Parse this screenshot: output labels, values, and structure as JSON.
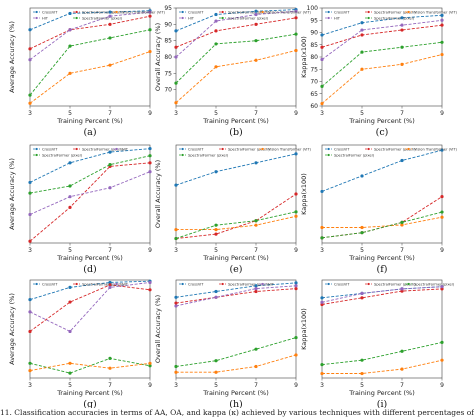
{
  "caption": "11. Classification accuracies in terms of AA, OA, and kappa (κ) achieved by various techniques with different percentages of training samples per",
  "colors": {
    "CrossViT": "#1f77b4",
    "SpectralFormer (patch)": "#d62728",
    "Vision Transformer (ViT)": "#ff7f0e",
    "HiT": "#9467bd",
    "SpectralFormer (pixel)": "#2ca02c"
  },
  "chart_data": [
    {
      "id": "a",
      "panel_label": "(a)",
      "type": "line",
      "xlabel": "Training Percent (%)",
      "ylabel": "Average Accuracy (%)",
      "x": [
        3,
        5,
        7,
        9
      ],
      "xlim": [
        3,
        9
      ],
      "ylim": [
        57,
        93
      ],
      "yticks": [],
      "legend": {
        "position": "top",
        "entries": [
          "CrossViT",
          "SpectralFormer (patch)",
          "Vision Transformer (ViT)",
          "HiT",
          "SpectralFormer (pixel)"
        ]
      },
      "series": [
        {
          "name": "CrossViT",
          "values": [
            85,
            91,
            91.5,
            92
          ]
        },
        {
          "name": "SpectralFormer (patch)",
          "values": [
            78,
            85,
            87,
            90
          ]
        },
        {
          "name": "Vision Transformer (ViT)",
          "values": [
            58,
            69,
            72,
            77
          ]
        },
        {
          "name": "HiT",
          "values": [
            74,
            85,
            90,
            91.5
          ]
        },
        {
          "name": "SpectralFormer (pixel)",
          "values": [
            61,
            79,
            82,
            85
          ]
        }
      ]
    },
    {
      "id": "d",
      "panel_label": "(d)",
      "type": "line",
      "xlabel": "Training Percent (%)",
      "ylabel": "Average Accuracy (%)",
      "x": [
        3,
        5,
        7,
        9
      ],
      "xlim": [
        3,
        9
      ],
      "ylim": [
        42,
        97
      ],
      "yticks": [],
      "legend": {
        "position": "top",
        "entries": [
          "CrossViT",
          "SpectralFormer (patch)",
          "HiT",
          "SpectralFormer (pixel)"
        ]
      },
      "series": [
        {
          "name": "CrossViT",
          "values": [
            76,
            87,
            93,
            95
          ]
        },
        {
          "name": "SpectralFormer (patch)",
          "values": [
            43,
            62,
            85,
            87
          ]
        },
        {
          "name": "HiT",
          "values": [
            58,
            68,
            73,
            82
          ]
        },
        {
          "name": "SpectralFormer (pixel)",
          "values": [
            70,
            74,
            86,
            91
          ]
        }
      ]
    },
    {
      "id": "g",
      "panel_label": "(g)",
      "type": "line",
      "xlabel": "Training Percent (%)",
      "ylabel": "Average Accuracy (%)",
      "x": [
        3,
        5,
        7,
        9
      ],
      "xlim": [
        3,
        9
      ],
      "ylim": [
        55,
        95
      ],
      "yticks": [],
      "legend": {
        "position": "top",
        "entries": [
          "CrossViT",
          "SpectralFormer (patch)",
          "HiT"
        ]
      },
      "series": [
        {
          "name": "CrossViT",
          "values": [
            87,
            92,
            94,
            94.5
          ]
        },
        {
          "name": "SpectralFormer (patch)",
          "values": [
            74,
            86,
            93,
            91
          ]
        },
        {
          "name": "HiT",
          "values": [
            82,
            74,
            92,
            94
          ]
        },
        {
          "name": "SpectralFormer (pixel)",
          "values": [
            61,
            57,
            63,
            60
          ]
        },
        {
          "name": "Vision Transformer (ViT)",
          "values": [
            58,
            61,
            59,
            61
          ]
        }
      ]
    },
    {
      "id": "b",
      "panel_label": "(b)",
      "type": "line",
      "xlabel": "Training Percent (%)",
      "ylabel": "Overall Accuracy (%)",
      "x": [
        3,
        5,
        7,
        9
      ],
      "xlim": [
        3,
        9
      ],
      "ylim": [
        65,
        95
      ],
      "yticks": [
        70,
        75,
        80,
        85,
        90,
        95
      ],
      "legend": {
        "position": "top",
        "entries": [
          "CrossViT",
          "SpectralFormer (patch)",
          "Vision Transformer (ViT)",
          "HiT",
          "SpectralFormer (pixel)"
        ]
      },
      "series": [
        {
          "name": "CrossViT",
          "values": [
            88,
            93,
            94,
            94.5
          ]
        },
        {
          "name": "SpectralFormer (patch)",
          "values": [
            83,
            88,
            90,
            92
          ]
        },
        {
          "name": "Vision Transformer (ViT)",
          "values": [
            66,
            77,
            79,
            82
          ]
        },
        {
          "name": "HiT",
          "values": [
            80,
            91,
            93,
            94
          ]
        },
        {
          "name": "SpectralFormer (pixel)",
          "values": [
            72,
            84,
            85,
            87
          ]
        }
      ]
    },
    {
      "id": "e",
      "panel_label": "(e)",
      "type": "line",
      "xlabel": "Training Percent (%)",
      "ylabel": "Overall Accuracy (%)",
      "x": [
        3,
        5,
        7,
        9
      ],
      "xlim": [
        3,
        9
      ],
      "ylim": [
        77,
        99
      ],
      "yticks": [],
      "legend": {
        "position": "top",
        "entries": [
          "CrossViT",
          "SpectralFormer (patch)",
          "Vision Transformer (ViT)",
          "SpectralFormer (pixel)"
        ]
      },
      "series": [
        {
          "name": "CrossViT",
          "values": [
            90,
            93,
            95,
            97
          ]
        },
        {
          "name": "SpectralFormer (patch)",
          "values": [
            78,
            79,
            82,
            88
          ]
        },
        {
          "name": "Vision Transformer (ViT)",
          "values": [
            80,
            80,
            81,
            83
          ]
        },
        {
          "name": "SpectralFormer (pixel)",
          "values": [
            78,
            81,
            82,
            84
          ]
        }
      ]
    },
    {
      "id": "h",
      "panel_label": "(h)",
      "type": "line",
      "xlabel": "Training Percent (%)",
      "ylabel": "Overall Accuracy (%)",
      "x": [
        3,
        5,
        7,
        9
      ],
      "xlim": [
        3,
        9
      ],
      "ylim": [
        79,
        96
      ],
      "yticks": [],
      "legend": {
        "position": "top",
        "entries": [
          "CrossViT",
          "SpectralFormer (patch)",
          "HiT"
        ]
      },
      "series": [
        {
          "name": "CrossViT",
          "values": [
            93,
            94,
            95,
            95.5
          ]
        },
        {
          "name": "SpectralFormer (patch)",
          "values": [
            92,
            93,
            94,
            94.5
          ]
        },
        {
          "name": "HiT",
          "values": [
            91.5,
            93,
            94.5,
            95
          ]
        },
        {
          "name": "SpectralFormer (pixel)",
          "values": [
            81,
            82,
            84,
            86
          ]
        },
        {
          "name": "Vision Transformer (ViT)",
          "values": [
            80,
            80,
            81,
            83
          ]
        }
      ]
    },
    {
      "id": "c",
      "panel_label": "(c)",
      "type": "line",
      "xlabel": "Training Percent (%)",
      "ylabel": "Kappa(x100)",
      "x": [
        3,
        5,
        7,
        9
      ],
      "xlim": [
        3,
        9
      ],
      "ylim": [
        60,
        100
      ],
      "yticks": [
        60,
        65,
        70,
        75,
        80,
        85,
        90,
        95,
        100
      ],
      "legend": {
        "position": "top",
        "entries": [
          "CrossViT",
          "SpectralFormer (patch)",
          "Vision Transformer (ViT)",
          "HiT",
          "SpectralFormer (pixel)"
        ]
      },
      "series": [
        {
          "name": "CrossViT",
          "values": [
            89,
            94,
            96,
            97
          ]
        },
        {
          "name": "SpectralFormer (patch)",
          "values": [
            84,
            89,
            91,
            93
          ]
        },
        {
          "name": "Vision Transformer (ViT)",
          "values": [
            61,
            75,
            77,
            81
          ]
        },
        {
          "name": "HiT",
          "values": [
            79,
            91,
            93,
            95
          ]
        },
        {
          "name": "SpectralFormer (pixel)",
          "values": [
            68,
            82,
            84,
            86
          ]
        }
      ]
    },
    {
      "id": "f",
      "panel_label": "(f)",
      "type": "line",
      "xlabel": "Training Percent (%)",
      "ylabel": "Kappa(x100)",
      "x": [
        3,
        5,
        7,
        9
      ],
      "xlim": [
        3,
        9
      ],
      "ylim": [
        77,
        96
      ],
      "yticks": [],
      "legend": {
        "position": "top",
        "entries": [
          "CrossViT",
          "SpectralFormer (patch)",
          "Vision Transformer (ViT)",
          "SpectralFormer (pixel)"
        ]
      },
      "series": [
        {
          "name": "CrossViT",
          "values": [
            87,
            90,
            93,
            95
          ]
        },
        {
          "name": "SpectralFormer (patch)",
          "values": [
            78,
            79,
            81,
            86
          ]
        },
        {
          "name": "Vision Transformer (ViT)",
          "values": [
            80,
            80,
            80.5,
            82
          ]
        },
        {
          "name": "SpectralFormer (pixel)",
          "values": [
            78,
            79,
            81,
            83
          ]
        }
      ]
    },
    {
      "id": "i",
      "panel_label": "(i)",
      "type": "line",
      "xlabel": "Training Percent (%)",
      "ylabel": "Kappa(x100)",
      "x": [
        3,
        5,
        7,
        9
      ],
      "xlim": [
        3,
        9
      ],
      "ylim": [
        74,
        96
      ],
      "yticks": [],
      "legend": {
        "position": "top",
        "entries": [
          "CrossViT",
          "SpectralFormer (patch)",
          "SpectralFormer (pixel)"
        ]
      },
      "series": [
        {
          "name": "CrossViT",
          "values": [
            92,
            93,
            94,
            94.5
          ]
        },
        {
          "name": "SpectralFormer (patch)",
          "values": [
            90.5,
            92,
            93.5,
            94
          ]
        },
        {
          "name": "HiT",
          "values": [
            91,
            93,
            94,
            94.5
          ]
        },
        {
          "name": "SpectralFormer (pixel)",
          "values": [
            77,
            78,
            80,
            82
          ]
        },
        {
          "name": "Vision Transformer (ViT)",
          "values": [
            75,
            75,
            76,
            78
          ]
        }
      ]
    }
  ]
}
